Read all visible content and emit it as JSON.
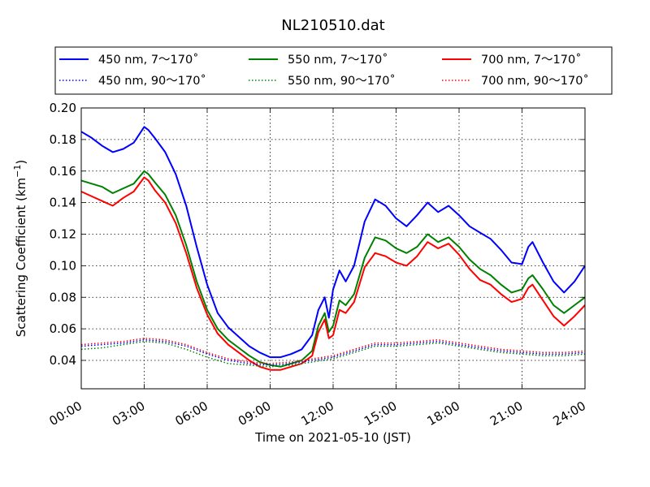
{
  "chart_data": {
    "type": "line",
    "title": "NL210510.dat",
    "xlabel": "Time on 2021-05-10 (JST)",
    "ylabel": "Scattering Coefficient (km",
    "ylabel_sup": "−1",
    "ylabel_tail": ")",
    "x_unit": "hour",
    "xlim": [
      0,
      24
    ],
    "ylim": [
      0.022,
      0.2
    ],
    "xticks": [
      0,
      3,
      6,
      9,
      12,
      15,
      18,
      21,
      24
    ],
    "xtick_labels": [
      "00:00",
      "03:00",
      "06:00",
      "09:00",
      "12:00",
      "15:00",
      "18:00",
      "21:00",
      "24:00"
    ],
    "yticks": [
      0.04,
      0.06,
      0.08,
      0.1,
      0.12,
      0.14,
      0.16,
      0.18,
      0.2
    ],
    "ytick_labels": [
      "0.04",
      "0.06",
      "0.08",
      "0.10",
      "0.12",
      "0.14",
      "0.16",
      "0.18",
      "0.20"
    ],
    "grid": true,
    "legend_position": "top, above plot, 3 columns",
    "series": [
      {
        "name": "450 nm, 7～170˚",
        "color": "#0000ff",
        "style": "solid",
        "x": [
          0,
          0.5,
          1,
          1.5,
          2,
          2.5,
          3,
          3.2,
          3.5,
          4,
          4.5,
          5,
          5.5,
          6,
          6.5,
          7,
          7.5,
          8,
          8.5,
          9,
          9.5,
          10,
          10.5,
          11,
          11.3,
          11.6,
          11.8,
          12,
          12.3,
          12.6,
          13,
          13.5,
          14,
          14.5,
          15,
          15.5,
          16,
          16.5,
          17,
          17.5,
          18,
          18.5,
          19,
          19.5,
          20,
          20.5,
          21,
          21.3,
          21.5,
          22,
          22.5,
          23,
          23.5,
          24
        ],
        "y": [
          0.185,
          0.181,
          0.176,
          0.172,
          0.174,
          0.178,
          0.188,
          0.186,
          0.181,
          0.172,
          0.158,
          0.138,
          0.112,
          0.088,
          0.07,
          0.061,
          0.055,
          0.049,
          0.045,
          0.042,
          0.042,
          0.044,
          0.047,
          0.056,
          0.072,
          0.08,
          0.067,
          0.085,
          0.097,
          0.09,
          0.1,
          0.128,
          0.142,
          0.138,
          0.13,
          0.125,
          0.132,
          0.14,
          0.134,
          0.138,
          0.132,
          0.125,
          0.121,
          0.117,
          0.11,
          0.102,
          0.101,
          0.112,
          0.115,
          0.102,
          0.09,
          0.083,
          0.09,
          0.1
        ]
      },
      {
        "name": "550 nm, 7～170˚",
        "color": "#008000",
        "style": "solid",
        "x": [
          0,
          0.5,
          1,
          1.5,
          2,
          2.5,
          3,
          3.2,
          3.5,
          4,
          4.5,
          5,
          5.5,
          6,
          6.5,
          7,
          7.5,
          8,
          8.5,
          9,
          9.5,
          10,
          10.5,
          11,
          11.3,
          11.6,
          11.8,
          12,
          12.3,
          12.6,
          13,
          13.5,
          14,
          14.5,
          15,
          15.5,
          16,
          16.5,
          17,
          17.5,
          18,
          18.5,
          19,
          19.5,
          20,
          20.5,
          21,
          21.3,
          21.5,
          22,
          22.5,
          23,
          23.5,
          24
        ],
        "y": [
          0.154,
          0.152,
          0.15,
          0.146,
          0.149,
          0.152,
          0.16,
          0.158,
          0.153,
          0.145,
          0.132,
          0.113,
          0.09,
          0.072,
          0.06,
          0.053,
          0.048,
          0.043,
          0.039,
          0.037,
          0.036,
          0.038,
          0.04,
          0.046,
          0.062,
          0.07,
          0.058,
          0.062,
          0.078,
          0.075,
          0.082,
          0.105,
          0.118,
          0.116,
          0.111,
          0.108,
          0.112,
          0.12,
          0.115,
          0.118,
          0.112,
          0.104,
          0.098,
          0.094,
          0.088,
          0.083,
          0.085,
          0.092,
          0.094,
          0.085,
          0.075,
          0.07,
          0.075,
          0.08
        ]
      },
      {
        "name": "700 nm, 7～170˚",
        "color": "#ff0000",
        "style": "solid",
        "x": [
          0,
          0.5,
          1,
          1.5,
          2,
          2.5,
          3,
          3.2,
          3.5,
          4,
          4.5,
          5,
          5.5,
          6,
          6.5,
          7,
          7.5,
          8,
          8.5,
          9,
          9.5,
          10,
          10.5,
          11,
          11.3,
          11.6,
          11.8,
          12,
          12.3,
          12.6,
          13,
          13.5,
          14,
          14.5,
          15,
          15.5,
          16,
          16.5,
          17,
          17.5,
          18,
          18.5,
          19,
          19.5,
          20,
          20.5,
          21,
          21.3,
          21.5,
          22,
          22.5,
          23,
          23.5,
          24
        ],
        "y": [
          0.147,
          0.144,
          0.141,
          0.138,
          0.143,
          0.147,
          0.156,
          0.154,
          0.148,
          0.14,
          0.127,
          0.108,
          0.086,
          0.069,
          0.057,
          0.05,
          0.045,
          0.04,
          0.036,
          0.034,
          0.034,
          0.036,
          0.038,
          0.043,
          0.058,
          0.066,
          0.054,
          0.056,
          0.072,
          0.07,
          0.077,
          0.099,
          0.108,
          0.106,
          0.102,
          0.1,
          0.106,
          0.115,
          0.111,
          0.114,
          0.107,
          0.098,
          0.091,
          0.088,
          0.082,
          0.077,
          0.079,
          0.086,
          0.088,
          0.078,
          0.068,
          0.062,
          0.068,
          0.075
        ]
      },
      {
        "name": "450 nm, 90～170˚",
        "color": "#0000ff",
        "style": "dotted",
        "x": [
          0,
          1,
          2,
          3,
          4,
          5,
          6,
          7,
          8,
          9,
          10,
          11,
          12,
          13,
          14,
          15,
          16,
          17,
          18,
          19,
          20,
          21,
          22,
          23,
          24
        ],
        "y": [
          0.049,
          0.05,
          0.051,
          0.053,
          0.052,
          0.049,
          0.044,
          0.04,
          0.038,
          0.037,
          0.038,
          0.04,
          0.042,
          0.046,
          0.05,
          0.05,
          0.051,
          0.052,
          0.05,
          0.048,
          0.046,
          0.045,
          0.044,
          0.044,
          0.045
        ]
      },
      {
        "name": "550 nm, 90～170˚",
        "color": "#008000",
        "style": "dotted",
        "x": [
          0,
          1,
          2,
          3,
          4,
          5,
          6,
          7,
          8,
          9,
          10,
          11,
          12,
          13,
          14,
          15,
          16,
          17,
          18,
          19,
          20,
          21,
          22,
          23,
          24
        ],
        "y": [
          0.047,
          0.048,
          0.05,
          0.052,
          0.051,
          0.047,
          0.042,
          0.038,
          0.037,
          0.036,
          0.037,
          0.039,
          0.041,
          0.045,
          0.049,
          0.049,
          0.05,
          0.051,
          0.049,
          0.047,
          0.045,
          0.044,
          0.043,
          0.043,
          0.044
        ]
      },
      {
        "name": "700 nm, 90～170˚",
        "color": "#ff0000",
        "style": "dotted",
        "x": [
          0,
          1,
          2,
          3,
          4,
          5,
          6,
          7,
          8,
          9,
          10,
          11,
          12,
          13,
          14,
          15,
          16,
          17,
          18,
          19,
          20,
          21,
          22,
          23,
          24
        ],
        "y": [
          0.05,
          0.051,
          0.052,
          0.054,
          0.053,
          0.05,
          0.045,
          0.041,
          0.039,
          0.038,
          0.039,
          0.041,
          0.043,
          0.047,
          0.051,
          0.051,
          0.052,
          0.053,
          0.051,
          0.049,
          0.047,
          0.046,
          0.045,
          0.045,
          0.046
        ]
      }
    ]
  }
}
